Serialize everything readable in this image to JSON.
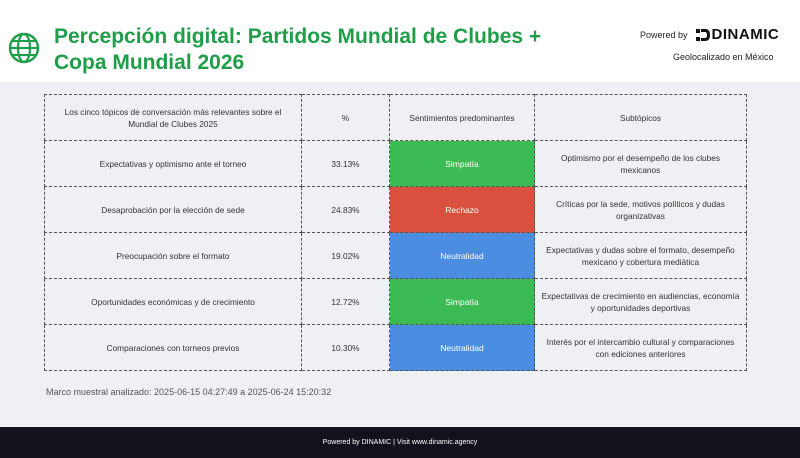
{
  "header": {
    "title_line1": "Percepción digital: Partidos Mundial de Clubes +",
    "title_line2": "Copa Mundial 2026",
    "powered_by": "Powered by",
    "logo_text": "DINAMIC",
    "geo": "Geolocalizado en México",
    "globe_icon": "globe-icon"
  },
  "table": {
    "headers": [
      "Los cinco tópicos de conversación más relevantes sobre el Mundial de Clubes 2025",
      "%",
      "Sentimientos predominantes",
      "Subtópicos"
    ],
    "rows": [
      {
        "topic": "Expectativas y optimismo ante el torneo",
        "pct": "33.13%",
        "sentiment": "Simpatía",
        "sentiment_color": "#3cba54",
        "sub": "Optimismo por el desempeño de los clubes mexicanos"
      },
      {
        "topic": "Desaprobación por la elección de sede",
        "pct": "24.83%",
        "sentiment": "Rechazo",
        "sentiment_color": "#d9503f",
        "sub": "Críticas por la sede, motivos políticos y dudas organizativas"
      },
      {
        "topic": "Preocupación sobre el formato",
        "pct": "19.02%",
        "sentiment": "Neutralidad",
        "sentiment_color": "#4b8de0",
        "sub": "Expectativas y dudas sobre el formato, desempeño mexicano y cobertura mediática"
      },
      {
        "topic": "Oportunidades económicas y de crecimiento",
        "pct": "12.72%",
        "sentiment": "Simpatía",
        "sentiment_color": "#3cba54",
        "sub": "Expectativas de crecimiento en audiencias, economía y oportunidades deportivas"
      },
      {
        "topic": "Comparaciones con torneos previos",
        "pct": "10.30%",
        "sentiment": "Neutralidad",
        "sentiment_color": "#4b8de0",
        "sub": "Interés por el intercambio cultural y comparaciones con ediciones anteriores"
      }
    ]
  },
  "sample": "Marco muestral analizado: 2025-06-15 04:27:49 a 2025-06-24 15:20:32",
  "footer": "Powered by DINAMIC | Visit www.dinamic.agency",
  "colors": {
    "title_green": "#1f9e4a",
    "footer_bg": "#12121c"
  }
}
